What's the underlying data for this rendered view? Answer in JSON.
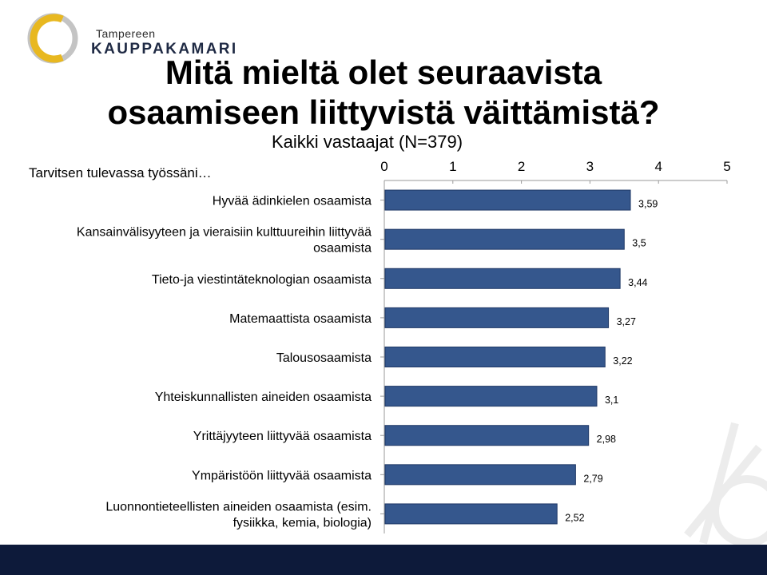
{
  "logo": {
    "line1": "Tampereen",
    "line2": "KAUPPAKAMARI",
    "accent": "#e8b820",
    "ring": "#bfbfbf"
  },
  "title": {
    "line1": "Mitä mieltä olet seuraavista",
    "line2": "osaamiseen liittyvistä väittämistä?"
  },
  "subtitle": "Kaikki vastaajat (N=379)",
  "lead": "Tarvitsen tulevassa työssäni…",
  "colors": {
    "bar": "#35578d",
    "bar_edge": "#1f3866",
    "footer": "#0d1a3a"
  },
  "chart_data": {
    "type": "bar",
    "orientation": "horizontal",
    "categories": [
      [
        "Hyvää ädinkielen osaamista"
      ],
      [
        "Kansainvälisyyteen ja vieraisiin kulttuureihin liittyvää",
        "osaamista"
      ],
      [
        "Tieto-ja viestintäteknologian osaamista"
      ],
      [
        "Matemaattista osaamista"
      ],
      [
        "Talousosaamista"
      ],
      [
        "Yhteiskunnallisten aineiden osaamista"
      ],
      [
        "Yrittäjyyteen liittyvää osaamista"
      ],
      [
        "Ympäristöön liittyvää osaamista"
      ],
      [
        "Luonnontieteellisten aineiden osaamista (esim.",
        "fysiikka, kemia, biologia)"
      ]
    ],
    "values": [
      3.59,
      3.5,
      3.44,
      3.27,
      3.22,
      3.1,
      2.98,
      2.79,
      2.52
    ],
    "value_labels": [
      "3,59",
      "3,5",
      "3,44",
      "3,27",
      "3,22",
      "3,1",
      "2,98",
      "2,79",
      "2,52"
    ],
    "xlim": [
      0,
      5
    ],
    "xticks": [
      "0",
      "1",
      "2",
      "3",
      "4",
      "5"
    ],
    "axis_position": "top",
    "grid": false
  }
}
